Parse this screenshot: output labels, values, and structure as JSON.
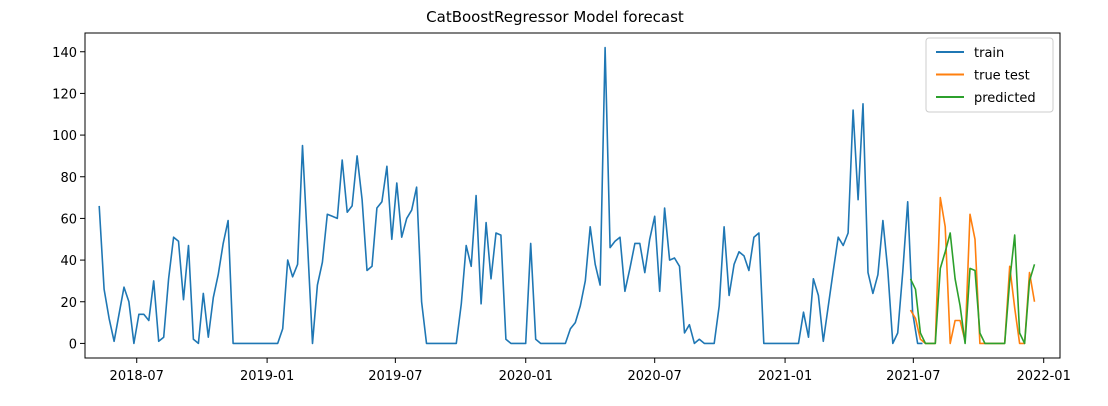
{
  "chart_data": {
    "type": "line",
    "title": "CatBoostRegressor Model forecast",
    "xlabel": "",
    "ylabel": "",
    "xlim": [
      "2018-04-19",
      "2022-01-24"
    ],
    "ylim": [
      -7,
      149
    ],
    "grid": false,
    "legend_position": "top-right",
    "x_ticks": [
      {
        "date": "2018-07-01",
        "label": "2018-07"
      },
      {
        "date": "2019-01-01",
        "label": "2019-01"
      },
      {
        "date": "2019-07-01",
        "label": "2019-07"
      },
      {
        "date": "2020-01-01",
        "label": "2020-01"
      },
      {
        "date": "2020-07-01",
        "label": "2020-07"
      },
      {
        "date": "2021-01-01",
        "label": "2021-01"
      },
      {
        "date": "2021-07-01",
        "label": "2021-07"
      },
      {
        "date": "2022-01-01",
        "label": "2022-01"
      }
    ],
    "y_ticks": [
      0,
      20,
      40,
      60,
      80,
      100,
      120,
      140
    ],
    "series": [
      {
        "name": "train",
        "color": "#1f77b4",
        "x_start": "2018-05-09",
        "interval_days": 7,
        "values": [
          66,
          26,
          12,
          1,
          14,
          27,
          20,
          0,
          14,
          14,
          11,
          30,
          1,
          3,
          31,
          51,
          49,
          21,
          47,
          2,
          0,
          24,
          3,
          22,
          33,
          48,
          59,
          0,
          0,
          0,
          0,
          0,
          0,
          0,
          0,
          0,
          0,
          7,
          40,
          32,
          38,
          95,
          48,
          0,
          28,
          39,
          62,
          61,
          60,
          88,
          63,
          66,
          90,
          69,
          35,
          37,
          65,
          68,
          85,
          50,
          77,
          51,
          60,
          64,
          75,
          20,
          0,
          0,
          0,
          0,
          0,
          0,
          0,
          19,
          47,
          37,
          71,
          19,
          58,
          31,
          53,
          52,
          2,
          0,
          0,
          0,
          0,
          48,
          2,
          0,
          0,
          0,
          0,
          0,
          0,
          7,
          10,
          18,
          30,
          56,
          38,
          28,
          142,
          46,
          49,
          51,
          25,
          36,
          48,
          48,
          34,
          50,
          61,
          25,
          65,
          40,
          41,
          37,
          5,
          9,
          0,
          2,
          0,
          0,
          0,
          18,
          56,
          23,
          38,
          44,
          42,
          35,
          51,
          53,
          0,
          0,
          0,
          0,
          0,
          0,
          0,
          0,
          15,
          3,
          31,
          23,
          1,
          18,
          35,
          51,
          47,
          53,
          112,
          69,
          115,
          34,
          24,
          33,
          59,
          35,
          0,
          5,
          34,
          68,
          15,
          0,
          0
        ]
      },
      {
        "name": "true test",
        "color": "#ff7f0e",
        "x_start": "2021-06-27",
        "interval_days": 7,
        "values": [
          16,
          12,
          2,
          0,
          0,
          0,
          70,
          56,
          0,
          11,
          11,
          1,
          62,
          50,
          0,
          0,
          0,
          0,
          0,
          0,
          37,
          17,
          0,
          0,
          34,
          20
        ]
      },
      {
        "name": "predicted",
        "color": "#2ca02c",
        "x_start": "2021-06-27",
        "interval_days": 7,
        "values": [
          31,
          26,
          5,
          0,
          0,
          0,
          36,
          44,
          53,
          31,
          18,
          0,
          36,
          35,
          5,
          0,
          0,
          0,
          0,
          0,
          30,
          52,
          5,
          0,
          30,
          38
        ]
      }
    ]
  }
}
